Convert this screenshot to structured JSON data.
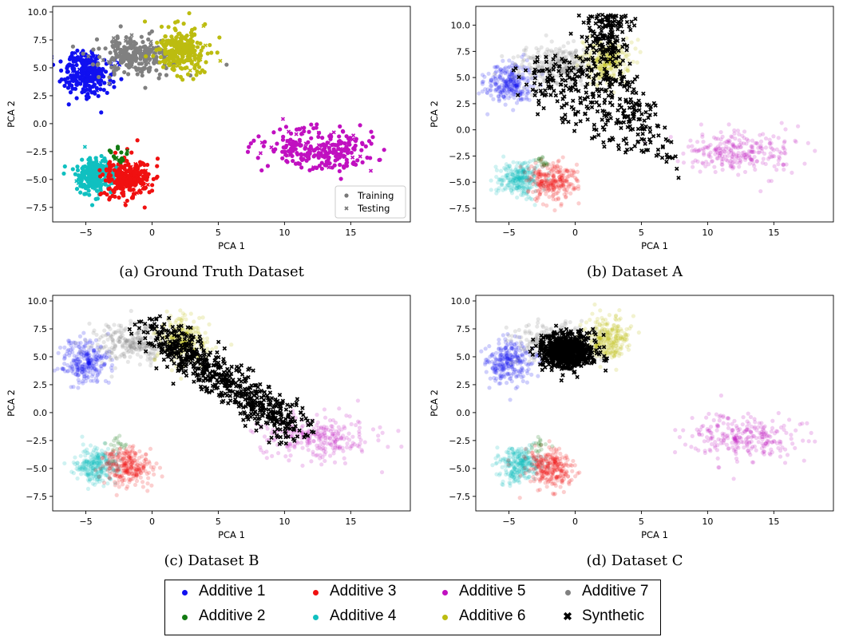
{
  "colors": {
    "additive_1": "#1010f0",
    "additive_2": "#127a12",
    "additive_3": "#f01010",
    "additive_4": "#10c0c0",
    "additive_5": "#c010c0",
    "additive_6": "#bcbc10",
    "additive_7": "#808080",
    "synthetic": "#000000"
  },
  "panels": [
    {
      "id": "a",
      "caption": "(a) Ground Truth Dataset"
    },
    {
      "id": "b",
      "caption": "(b) Dataset A"
    },
    {
      "id": "c",
      "caption": "(c) Dataset B"
    },
    {
      "id": "d",
      "caption": "(d) Dataset C"
    }
  ],
  "legend": {
    "items": [
      {
        "label": "Additive 1",
        "key": "additive_1",
        "marker": "dot"
      },
      {
        "label": "Additive 2",
        "key": "additive_2",
        "marker": "dot"
      },
      {
        "label": "Additive 3",
        "key": "additive_3",
        "marker": "dot"
      },
      {
        "label": "Additive 4",
        "key": "additive_4",
        "marker": "dot"
      },
      {
        "label": "Additive 5",
        "key": "additive_5",
        "marker": "dot"
      },
      {
        "label": "Additive 6",
        "key": "additive_6",
        "marker": "dot"
      },
      {
        "label": "Additive 7",
        "key": "additive_7",
        "marker": "dot"
      },
      {
        "label": "Synthetic",
        "key": "synthetic",
        "marker": "x"
      }
    ]
  },
  "chart_data": [
    {
      "type": "scatter",
      "panel": "a",
      "xlabel": "PCA 1",
      "ylabel": "PCA 2",
      "xlim": [
        -7.5,
        19.5
      ],
      "ylim": [
        -8.8,
        10.5
      ],
      "xticks": [
        -5,
        0,
        5,
        10,
        15
      ],
      "yticks": [
        -7.5,
        -5.0,
        -2.5,
        0.0,
        2.5,
        5.0,
        7.5,
        10.0
      ],
      "grid": false,
      "inner_legend": {
        "placement": "lower-right",
        "entries": [
          "Training",
          "Testing"
        ]
      },
      "clusters": [
        {
          "series": "Additive 1",
          "key": "additive_1",
          "center": [
            -5.0,
            4.5
          ],
          "sd": [
            0.9,
            1.0
          ],
          "alpha": 1.0
        },
        {
          "series": "Additive 7",
          "key": "additive_7",
          "center": [
            -1.5,
            6.2
          ],
          "sd": [
            1.5,
            0.9
          ],
          "alpha": 1.0
        },
        {
          "series": "Additive 6",
          "key": "additive_6",
          "center": [
            2.3,
            6.5
          ],
          "sd": [
            0.9,
            1.0
          ],
          "alpha": 1.0
        },
        {
          "series": "Additive 5",
          "key": "additive_5",
          "center": [
            12.5,
            -2.2
          ],
          "sd": [
            2.2,
            1.0
          ],
          "alpha": 1.0
        },
        {
          "series": "Additive 4",
          "key": "additive_4",
          "center": [
            -4.2,
            -4.7
          ],
          "sd": [
            0.8,
            0.8
          ],
          "alpha": 1.0
        },
        {
          "series": "Additive 3",
          "key": "additive_3",
          "center": [
            -1.8,
            -4.9
          ],
          "sd": [
            0.9,
            0.9
          ],
          "alpha": 1.0
        },
        {
          "series": "Additive 2",
          "key": "additive_2",
          "center": [
            -2.5,
            -3.0
          ],
          "sd": [
            0.4,
            0.4
          ],
          "alpha": 1.0
        }
      ],
      "synthetic": null
    },
    {
      "type": "scatter",
      "panel": "b",
      "xlabel": "PCA 1",
      "ylabel": "PCA 2",
      "xlim": [
        -7.5,
        19.5
      ],
      "ylim": [
        -8.8,
        11.8
      ],
      "xticks": [
        -5,
        0,
        5,
        10,
        15
      ],
      "yticks": [
        -7.5,
        -5.0,
        -2.5,
        0.0,
        2.5,
        5.0,
        7.5,
        10.0
      ],
      "grid": false,
      "clusters": [
        {
          "series": "Additive 1",
          "key": "additive_1",
          "center": [
            -5.0,
            4.5
          ],
          "sd": [
            0.9,
            1.0
          ],
          "alpha": 0.2
        },
        {
          "series": "Additive 7",
          "key": "additive_7",
          "center": [
            -1.5,
            6.2
          ],
          "sd": [
            1.5,
            0.9
          ],
          "alpha": 0.2
        },
        {
          "series": "Additive 6",
          "key": "additive_6",
          "center": [
            2.3,
            6.5
          ],
          "sd": [
            0.9,
            1.0
          ],
          "alpha": 0.2
        },
        {
          "series": "Additive 5",
          "key": "additive_5",
          "center": [
            12.5,
            -2.2
          ],
          "sd": [
            2.2,
            1.0
          ],
          "alpha": 0.2
        },
        {
          "series": "Additive 4",
          "key": "additive_4",
          "center": [
            -4.2,
            -4.7
          ],
          "sd": [
            0.8,
            0.8
          ],
          "alpha": 0.2
        },
        {
          "series": "Additive 3",
          "key": "additive_3",
          "center": [
            -1.8,
            -4.9
          ],
          "sd": [
            0.9,
            0.9
          ],
          "alpha": 0.2
        },
        {
          "series": "Additive 2",
          "key": "additive_2",
          "center": [
            -2.5,
            -3.0
          ],
          "sd": [
            0.4,
            0.4
          ],
          "alpha": 0.2
        }
      ],
      "synthetic": {
        "series": "Synthetic",
        "shape": "wide-triangle",
        "anchors": [
          [
            -5,
            6
          ],
          [
            3,
            11
          ],
          [
            8,
            -1.5
          ]
        ],
        "count": 520
      }
    },
    {
      "type": "scatter",
      "panel": "c",
      "xlabel": "PCA 1",
      "ylabel": "PCA 2",
      "xlim": [
        -7.5,
        19.5
      ],
      "ylim": [
        -8.8,
        10.5
      ],
      "xticks": [
        -5,
        0,
        5,
        10,
        15
      ],
      "yticks": [
        -7.5,
        -5.0,
        -2.5,
        0.0,
        2.5,
        5.0,
        7.5,
        10.0
      ],
      "grid": false,
      "clusters": [
        {
          "series": "Additive 1",
          "key": "additive_1",
          "center": [
            -5.0,
            4.5
          ],
          "sd": [
            0.9,
            1.0
          ],
          "alpha": 0.2
        },
        {
          "series": "Additive 7",
          "key": "additive_7",
          "center": [
            -1.5,
            6.2
          ],
          "sd": [
            1.5,
            0.9
          ],
          "alpha": 0.2
        },
        {
          "series": "Additive 6",
          "key": "additive_6",
          "center": [
            2.3,
            6.5
          ],
          "sd": [
            0.9,
            1.0
          ],
          "alpha": 0.2
        },
        {
          "series": "Additive 5",
          "key": "additive_5",
          "center": [
            12.5,
            -2.2
          ],
          "sd": [
            2.2,
            1.0
          ],
          "alpha": 0.2
        },
        {
          "series": "Additive 4",
          "key": "additive_4",
          "center": [
            -4.2,
            -4.7
          ],
          "sd": [
            0.8,
            0.8
          ],
          "alpha": 0.2
        },
        {
          "series": "Additive 3",
          "key": "additive_3",
          "center": [
            -1.8,
            -4.9
          ],
          "sd": [
            0.9,
            0.9
          ],
          "alpha": 0.2
        },
        {
          "series": "Additive 2",
          "key": "additive_2",
          "center": [
            -2.5,
            -3.0
          ],
          "sd": [
            0.4,
            0.4
          ],
          "alpha": 0.2
        }
      ],
      "synthetic": {
        "series": "Synthetic",
        "shape": "diagonal-band",
        "from": [
          0,
          7.5
        ],
        "to": [
          11,
          -1.8
        ],
        "spread": 1.1,
        "count": 620
      }
    },
    {
      "type": "scatter",
      "panel": "d",
      "xlabel": "PCA 1",
      "ylabel": "PCA 2",
      "xlim": [
        -7.5,
        19.5
      ],
      "ylim": [
        -8.8,
        10.5
      ],
      "xticks": [
        -5,
        0,
        5,
        10,
        15
      ],
      "yticks": [
        -7.5,
        -5.0,
        -2.5,
        0.0,
        2.5,
        5.0,
        7.5,
        10.0
      ],
      "grid": false,
      "clusters": [
        {
          "series": "Additive 1",
          "key": "additive_1",
          "center": [
            -5.0,
            4.5
          ],
          "sd": [
            0.9,
            1.0
          ],
          "alpha": 0.2
        },
        {
          "series": "Additive 7",
          "key": "additive_7",
          "center": [
            -1.5,
            6.2
          ],
          "sd": [
            1.5,
            0.9
          ],
          "alpha": 0.2
        },
        {
          "series": "Additive 6",
          "key": "additive_6",
          "center": [
            2.3,
            6.5
          ],
          "sd": [
            0.9,
            1.0
          ],
          "alpha": 0.2
        },
        {
          "series": "Additive 5",
          "key": "additive_5",
          "center": [
            12.5,
            -2.2
          ],
          "sd": [
            2.2,
            1.0
          ],
          "alpha": 0.2
        },
        {
          "series": "Additive 4",
          "key": "additive_4",
          "center": [
            -4.2,
            -4.7
          ],
          "sd": [
            0.8,
            0.8
          ],
          "alpha": 0.2
        },
        {
          "series": "Additive 3",
          "key": "additive_3",
          "center": [
            -1.8,
            -4.9
          ],
          "sd": [
            0.9,
            0.9
          ],
          "alpha": 0.2
        },
        {
          "series": "Additive 2",
          "key": "additive_2",
          "center": [
            -2.5,
            -3.0
          ],
          "sd": [
            0.4,
            0.4
          ],
          "alpha": 0.2
        }
      ],
      "synthetic": {
        "series": "Synthetic",
        "shape": "dense-blob",
        "center": [
          -0.6,
          5.5
        ],
        "sd": [
          1.0,
          0.75
        ],
        "count": 700
      }
    }
  ]
}
